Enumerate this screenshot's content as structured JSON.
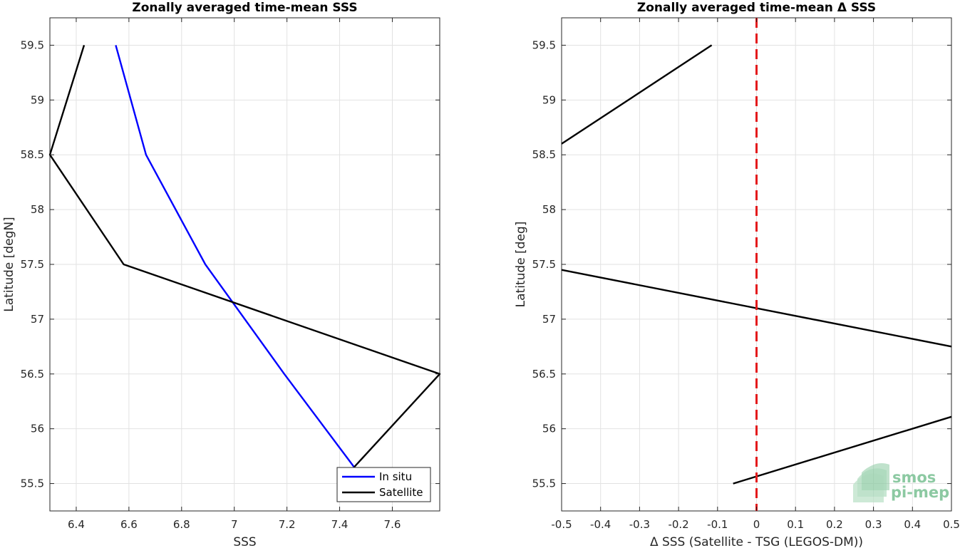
{
  "chart_data": [
    {
      "type": "line",
      "title": "Zonally averaged time-mean SSS",
      "xlabel": "SSS",
      "ylabel": "Latitude [degN]",
      "xlim": [
        6.3,
        7.78
      ],
      "ylim": [
        55.25,
        59.75
      ],
      "xticks": [
        6.4,
        6.6,
        6.8,
        7,
        7.2,
        7.4,
        7.6
      ],
      "xtick_labels": [
        "6.4",
        "6.6",
        "6.8",
        "7",
        "7.2",
        "7.4",
        "7.6"
      ],
      "yticks": [
        55.5,
        56,
        56.5,
        57,
        57.5,
        58,
        58.5,
        59,
        59.5
      ],
      "ytick_labels": [
        "55.5",
        "56",
        "56.5",
        "57",
        "57.5",
        "58",
        "58.5",
        "59",
        "59.5"
      ],
      "grid": true,
      "legend_position": "bottom-right",
      "series": [
        {
          "name": "In situ",
          "color": "#0000ff",
          "points": [
            {
              "x": 6.55,
              "y": 59.5
            },
            {
              "x": 6.665,
              "y": 58.5
            },
            {
              "x": 6.89,
              "y": 57.5
            },
            {
              "x": 7.19,
              "y": 56.5
            },
            {
              "x": 7.455,
              "y": 55.65
            }
          ]
        },
        {
          "name": "Satellite",
          "color": "#000000",
          "points": [
            {
              "x": 6.43,
              "y": 59.5
            },
            {
              "x": 6.3,
              "y": 58.5
            },
            {
              "x": 6.58,
              "y": 57.5
            },
            {
              "x": 7.78,
              "y": 56.5
            },
            {
              "x": 7.455,
              "y": 55.65
            }
          ]
        }
      ]
    },
    {
      "type": "line",
      "title": "Zonally averaged time-mean Δ SSS",
      "xlabel": "Δ SSS (Satellite - TSG (LEGOS-DM))",
      "ylabel": "Latitude [deg]",
      "xlim": [
        -0.5,
        0.5
      ],
      "ylim": [
        55.25,
        59.75
      ],
      "xticks": [
        -0.5,
        -0.4,
        -0.3,
        -0.2,
        -0.1,
        0,
        0.1,
        0.2,
        0.3,
        0.4,
        0.5
      ],
      "xtick_labels": [
        "-0.5",
        "-0.4",
        "-0.3",
        "-0.2",
        "-0.1",
        "0",
        "0.1",
        "0.2",
        "0.3",
        "0.4",
        "0.5"
      ],
      "yticks": [
        55.5,
        56,
        56.5,
        57,
        57.5,
        58,
        58.5,
        59,
        59.5
      ],
      "ytick_labels": [
        "55.5",
        "56",
        "56.5",
        "57",
        "57.5",
        "58",
        "58.5",
        "59",
        "59.5"
      ],
      "grid": true,
      "reference_line": {
        "x": 0,
        "color": "#e41a1c",
        "style": "dashed"
      },
      "series": [
        {
          "color": "#000000",
          "segments": [
            [
              {
                "x": -0.115,
                "y": 59.5
              },
              {
                "x": -0.5,
                "y": 58.6
              }
            ],
            [
              {
                "x": -0.5,
                "y": 57.45
              },
              {
                "x": 0.5,
                "y": 56.75
              }
            ],
            [
              {
                "x": -0.06,
                "y": 55.5
              },
              {
                "x": 0.5,
                "y": 56.11
              }
            ]
          ]
        }
      ]
    }
  ],
  "logo": {
    "line1": "smos",
    "line2": "pi-mep"
  }
}
